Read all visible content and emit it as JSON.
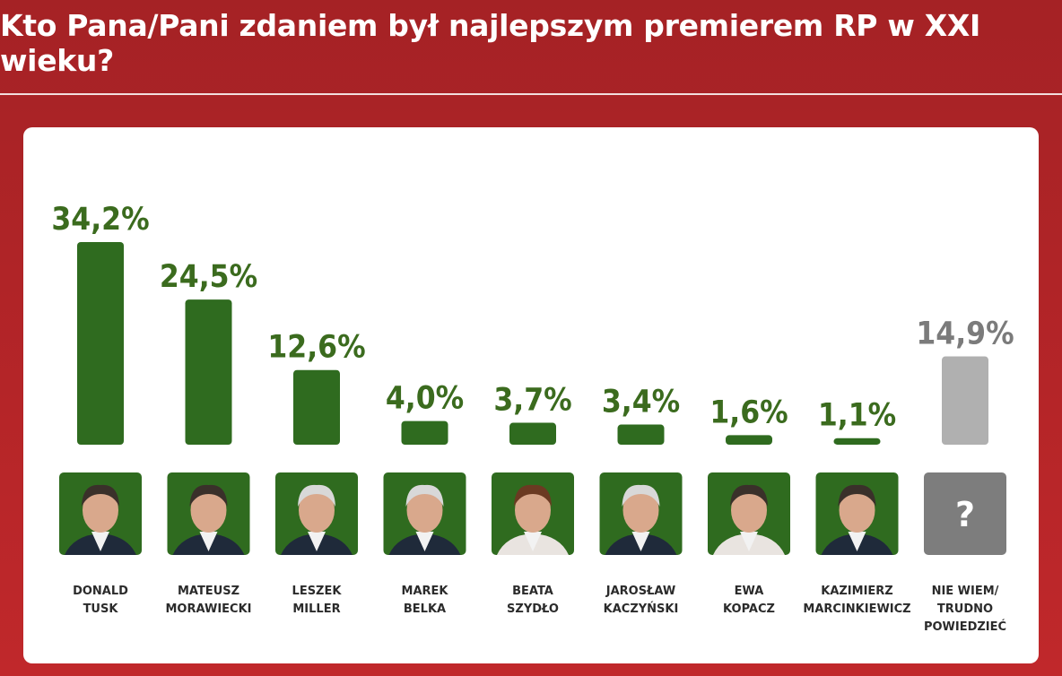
{
  "header": {
    "title": "Kto Pana/Pani zdaniem był najlepszym premierem RP w XXI wieku?"
  },
  "colors": {
    "bar_main": "#2f6b1f",
    "bar_other": "#b0b0b0",
    "value_main": "#3b6b1e",
    "value_other": "#7b7b7b"
  },
  "unknown_symbol": "?",
  "chart_data": {
    "type": "bar",
    "title": "Kto Pana/Pani zdaniem był najlepszym premierem RP w XXI wieku?",
    "categories": [
      "DONALD TUSK",
      "MATEUSZ MORAWIECKI",
      "LESZEK MILLER",
      "MAREK BELKA",
      "BEATA SZYDŁO",
      "JAROSŁAW KACZYŃSKI",
      "EWA KOPACZ",
      "KAZIMIERZ MARCINKIEWICZ",
      "NIE WIEM/ TRUDNO POWIEDZIEĆ"
    ],
    "category_lines": [
      [
        "DONALD",
        "TUSK"
      ],
      [
        "MATEUSZ",
        "MORAWIECKI"
      ],
      [
        "LESZEK",
        "MILLER"
      ],
      [
        "MAREK",
        "BELKA"
      ],
      [
        "BEATA",
        "SZYDŁO"
      ],
      [
        "JAROSŁAW",
        "KACZYŃSKI"
      ],
      [
        "EWA",
        "KOPACZ"
      ],
      [
        "KAZIMIERZ",
        "MARCINKIEWICZ"
      ],
      [
        "NIE WIEM/",
        "TRUDNO",
        "POWIEDZIEĆ"
      ]
    ],
    "values": [
      34.2,
      24.5,
      12.6,
      4.0,
      3.7,
      3.4,
      1.6,
      1.1,
      14.9
    ],
    "value_labels": [
      "34,2%",
      "24,5%",
      "12,6%",
      "4,0%",
      "3,7%",
      "3,4%",
      "1,6%",
      "1,1%",
      "14,9%"
    ],
    "highlight": [
      true,
      true,
      true,
      true,
      true,
      true,
      true,
      true,
      false
    ],
    "unit": "%",
    "ylim": [
      0,
      34.2
    ],
    "xlabel": "",
    "ylabel": "",
    "grid": false,
    "legend": "none"
  }
}
